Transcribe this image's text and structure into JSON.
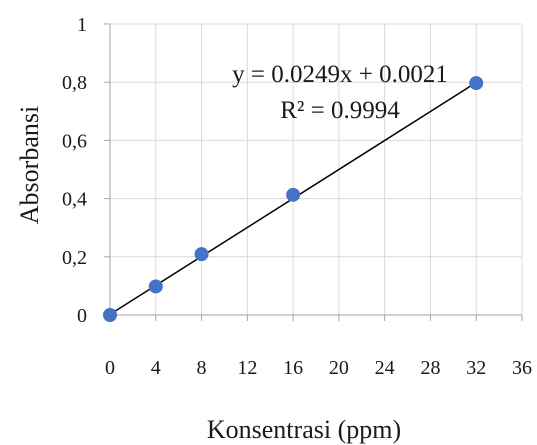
{
  "chart_data": {
    "type": "scatter",
    "title": "",
    "xlabel": "Konsentrasi (ppm)",
    "ylabel": "Absorbansi",
    "xlim": [
      0,
      36
    ],
    "ylim": [
      0,
      1
    ],
    "x_ticks": [
      "0",
      "4",
      "8",
      "12",
      "16",
      "20",
      "24",
      "28",
      "32",
      "36"
    ],
    "y_ticks": [
      "0",
      "0,2",
      "0,4",
      "0,6",
      "0,8",
      "1"
    ],
    "grid": true,
    "series": [
      {
        "points": [
          {
            "x": 0,
            "y": 0.0
          },
          {
            "x": 4,
            "y": 0.098
          },
          {
            "x": 8,
            "y": 0.209
          },
          {
            "x": 16,
            "y": 0.413
          },
          {
            "x": 32,
            "y": 0.797
          }
        ],
        "color": "#4472c4"
      }
    ],
    "trendline": {
      "slope": 0.0249,
      "intercept": 0.0021,
      "x_range": [
        0,
        32
      ],
      "color": "#000000"
    },
    "annotations": {
      "equation": "y = 0.0249x + 0.0021",
      "r2": "R² = 0.9994"
    }
  }
}
